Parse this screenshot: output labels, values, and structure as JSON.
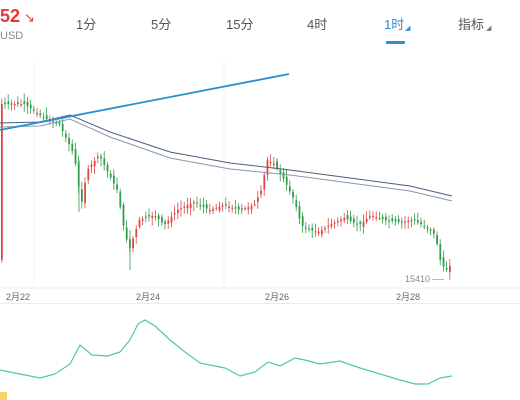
{
  "header": {
    "price": "52",
    "currency": "USD",
    "trend_icon": "arrow-down-right-icon",
    "price_color": "#e53935"
  },
  "tabs": [
    {
      "label": "1分",
      "active": false
    },
    {
      "label": "5分",
      "active": false
    },
    {
      "label": "15分",
      "active": false
    },
    {
      "label": "4时",
      "active": false
    },
    {
      "label": "1时",
      "active": true
    },
    {
      "label": "指标",
      "active": false
    }
  ],
  "accent_color": "#2a8fd0",
  "chart": {
    "x_labels": [
      "2月22",
      "2月24",
      "2月26",
      "2月28"
    ],
    "last_price_label": "15410",
    "up_color": "#e04545",
    "down_color": "#2e9e49",
    "oscillator_color": "#4ec6b4"
  }
}
